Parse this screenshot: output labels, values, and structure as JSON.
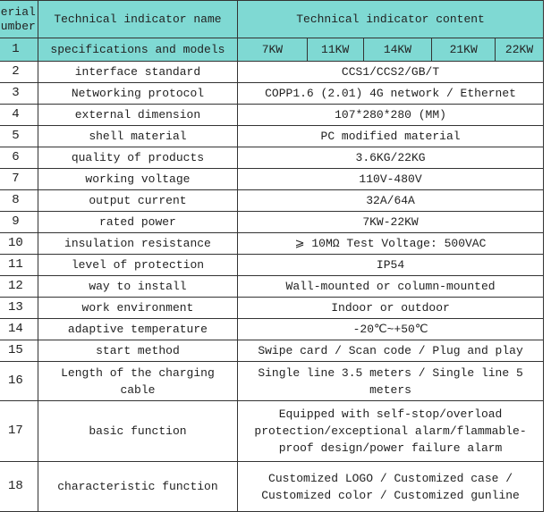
{
  "header": {
    "serial": "serial number",
    "name": "Technical indicator name",
    "content": "Technical indicator content"
  },
  "row1": {
    "num": "1",
    "name": "specifications and models",
    "models": [
      "7KW",
      "11KW",
      "14KW",
      "21KW",
      "22KW"
    ]
  },
  "rows": [
    {
      "num": "2",
      "name": "interface standard",
      "content": "CCS1/CCS2/GB/T"
    },
    {
      "num": "3",
      "name": "Networking protocol",
      "content": "COPP1.6 (2.01) 4G network / Ethernet"
    },
    {
      "num": "4",
      "name": "external dimension",
      "content": "107*280*280 (MM)"
    },
    {
      "num": "5",
      "name": "shell material",
      "content": "PC modified material"
    },
    {
      "num": "6",
      "name": "quality of products",
      "content": "3.6KG/22KG"
    },
    {
      "num": "7",
      "name": "working voltage",
      "content": "110V-480V"
    },
    {
      "num": "8",
      "name": "output current",
      "content": "32A/64A"
    },
    {
      "num": "9",
      "name": "rated power",
      "content": "7KW-22KW"
    },
    {
      "num": "10",
      "name": "insulation resistance",
      "content": "⩾ 10MΩ  Test Voltage: 500VAC"
    },
    {
      "num": "11",
      "name": "level of protection",
      "content": "IP54"
    },
    {
      "num": "12",
      "name": "way to install",
      "content": "Wall-mounted or column-mounted"
    },
    {
      "num": "13",
      "name": "work environment",
      "content": "Indoor or outdoor"
    },
    {
      "num": "14",
      "name": "adaptive temperature",
      "content": "-20℃~+50℃"
    },
    {
      "num": "15",
      "name": "start method",
      "content": "Swipe card / Scan code / Plug and play"
    },
    {
      "num": "16",
      "name": "Length of the charging cable",
      "content": "Single line 3.5 meters / Single line 5 meters"
    },
    {
      "num": "17",
      "name": "basic function",
      "content": "Equipped with self-stop/overload protection/exceptional alarm/flammable-proof design/power failure alarm"
    },
    {
      "num": "18",
      "name": "characteristic function",
      "content": "Customized LOGO / Customized case / Customized color / Customized gunline"
    }
  ],
  "colors": {
    "header_bg": "#7fd9d3",
    "border": "#333333"
  }
}
